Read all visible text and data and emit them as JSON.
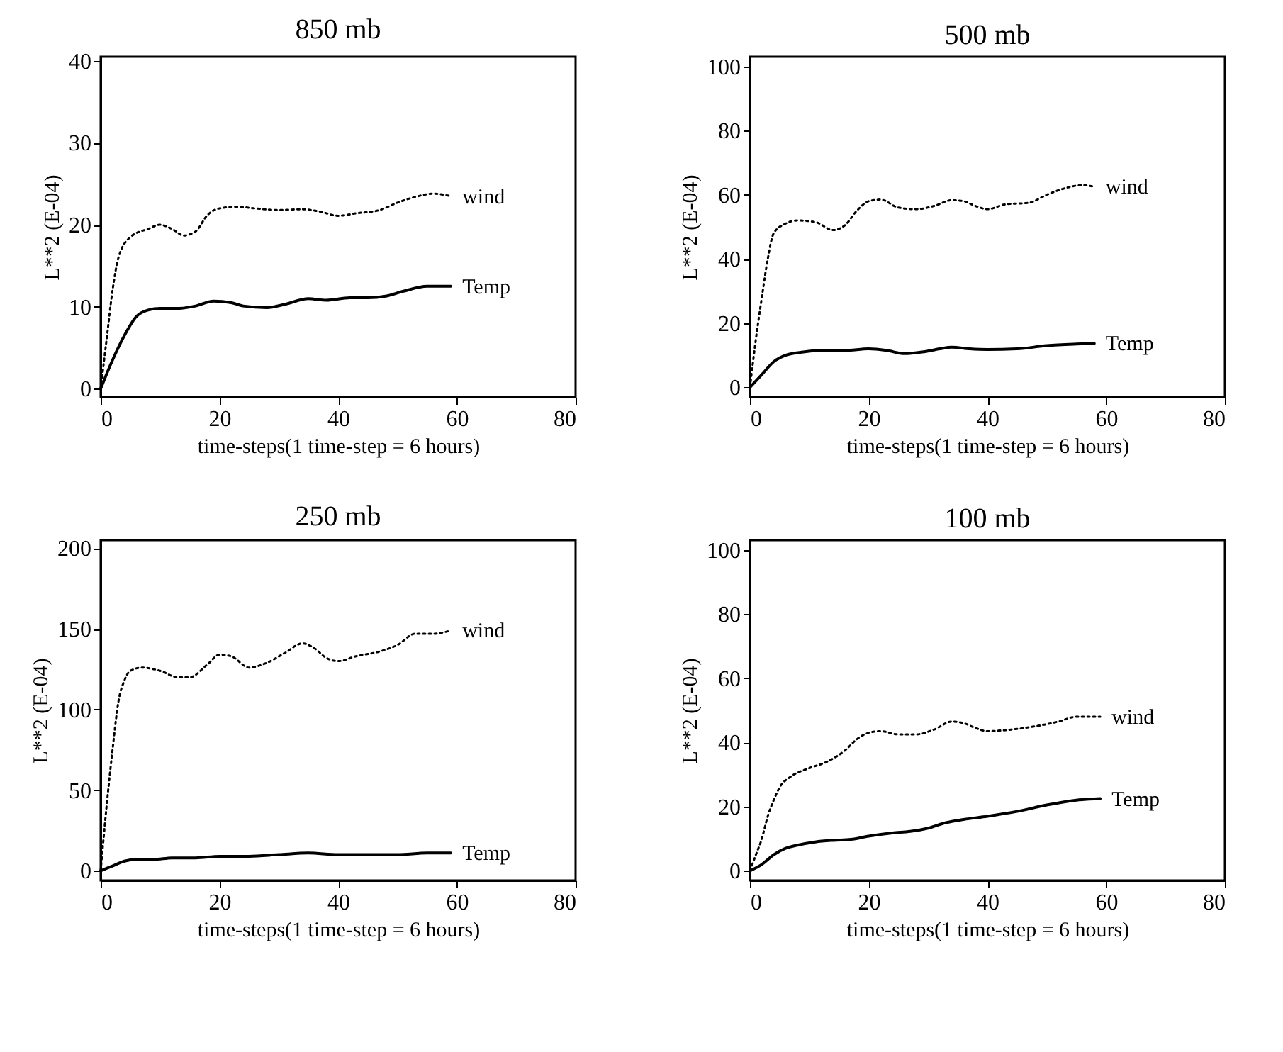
{
  "chart_data": [
    {
      "type": "line",
      "title": "850 mb",
      "xlabel": "time-steps(1 time-step = 6 hours)",
      "ylabel": "L**2 (E-04)",
      "xlim": [
        0,
        80
      ],
      "ylim": [
        -1,
        40.5
      ],
      "xticks": [
        0,
        20,
        40,
        60,
        80
      ],
      "yticks": [
        0,
        10,
        20,
        30,
        40
      ],
      "grid": false,
      "series": [
        {
          "name": "wind",
          "color": "#000000",
          "line_style": "dotted",
          "x": [
            0,
            1,
            2,
            3,
            5,
            8,
            10,
            12,
            14,
            16,
            18,
            20,
            23,
            26,
            30,
            34,
            37,
            40,
            43,
            47,
            50,
            53,
            56,
            59
          ],
          "values": [
            0,
            6,
            12,
            16,
            18.5,
            19.5,
            20,
            19.5,
            18.7,
            19.2,
            21.2,
            22,
            22.2,
            22,
            21.8,
            21.9,
            21.6,
            21.1,
            21.4,
            21.8,
            22.7,
            23.4,
            23.8,
            23.5
          ]
        },
        {
          "name": "Temp",
          "color": "#000000",
          "line_style": "solid",
          "x": [
            0,
            2,
            4,
            6,
            8,
            10,
            13,
            16,
            19,
            22,
            24,
            28,
            31,
            35,
            38,
            42,
            45,
            48,
            51,
            55,
            59
          ],
          "values": [
            0,
            3.5,
            6.5,
            8.8,
            9.6,
            9.8,
            9.8,
            10.1,
            10.7,
            10.5,
            10.1,
            9.9,
            10.3,
            11,
            10.8,
            11.1,
            11.1,
            11.3,
            11.9,
            12.5,
            12.5
          ]
        }
      ]
    },
    {
      "type": "line",
      "title": "500 mb",
      "xlabel": "time-steps(1 time-step = 6 hours)",
      "ylabel": "L**2 (E-04)",
      "xlim": [
        0,
        80
      ],
      "ylim": [
        -3,
        103
      ],
      "xticks": [
        0,
        20,
        40,
        60,
        80
      ],
      "yticks": [
        0,
        20,
        40,
        60,
        80,
        100
      ],
      "grid": false,
      "series": [
        {
          "name": "wind",
          "color": "#000000",
          "line_style": "dotted",
          "x": [
            0,
            1,
            2,
            3,
            4,
            6,
            8,
            11,
            14,
            16,
            18,
            20,
            22,
            25,
            28,
            31,
            34,
            36,
            38,
            40,
            43,
            47,
            50,
            53,
            56,
            58
          ],
          "values": [
            0,
            15,
            28,
            40,
            48,
            51,
            52,
            51.5,
            49,
            50.5,
            55,
            58,
            58.5,
            56,
            55.5,
            56.5,
            58.3,
            58,
            56.5,
            55.5,
            57,
            57.5,
            60,
            62,
            63,
            62.5
          ]
        },
        {
          "name": "Temp",
          "color": "#000000",
          "line_style": "solid",
          "x": [
            0,
            2,
            4,
            6,
            9,
            12,
            16,
            20,
            23,
            26,
            29,
            32,
            34,
            37,
            40,
            45,
            50,
            55,
            58
          ],
          "values": [
            0,
            4,
            8,
            10,
            11,
            11.5,
            11.5,
            12,
            11.5,
            10.5,
            11,
            12,
            12.5,
            12,
            11.8,
            12,
            13,
            13.5,
            13.7
          ]
        }
      ]
    },
    {
      "type": "line",
      "title": "250 mb",
      "xlabel": "time-steps(1 time-step = 6 hours)",
      "ylabel": "L**2 (E-04)",
      "xlim": [
        0,
        80
      ],
      "ylim": [
        -6,
        205
      ],
      "xticks": [
        0,
        20,
        40,
        60,
        80
      ],
      "yticks": [
        0,
        50,
        100,
        150,
        200
      ],
      "grid": false,
      "series": [
        {
          "name": "wind",
          "color": "#000000",
          "line_style": "dotted",
          "x": [
            0,
            1,
            2,
            3,
            4,
            5,
            7,
            10,
            13,
            15,
            18,
            20,
            22,
            25,
            28,
            31,
            34,
            36,
            38,
            40,
            43,
            47,
            50,
            53,
            56,
            59
          ],
          "values": [
            0,
            40,
            75,
            105,
            118,
            124,
            126,
            124,
            120,
            120,
            128,
            134,
            133,
            126,
            129,
            135,
            141,
            138,
            132,
            130,
            133,
            136,
            140,
            147,
            147,
            149
          ]
        },
        {
          "name": "Temp",
          "color": "#000000",
          "line_style": "solid",
          "x": [
            0,
            2,
            4,
            6,
            9,
            12,
            16,
            20,
            25,
            30,
            35,
            40,
            45,
            50,
            55,
            59
          ],
          "values": [
            0,
            3,
            6,
            7,
            7,
            8,
            8,
            9,
            9,
            10,
            11,
            10,
            10,
            10,
            11,
            11
          ]
        }
      ]
    },
    {
      "type": "line",
      "title": "100 mb",
      "xlabel": "time-steps(1 time-step = 6 hours)",
      "ylabel": "L**2 (E-04)",
      "xlim": [
        0,
        80
      ],
      "ylim": [
        -3,
        103
      ],
      "xticks": [
        0,
        20,
        40,
        60,
        80
      ],
      "yticks": [
        0,
        20,
        40,
        60,
        80,
        100
      ],
      "grid": false,
      "series": [
        {
          "name": "wind",
          "color": "#000000",
          "line_style": "dotted",
          "x": [
            0,
            1,
            2,
            3,
            4,
            5,
            7,
            10,
            13,
            16,
            18,
            20,
            22,
            25,
            28,
            31,
            34,
            36,
            38,
            40,
            44,
            48,
            52,
            55,
            59
          ],
          "values": [
            0,
            5,
            10,
            17,
            22,
            26,
            29.5,
            32,
            34,
            37.5,
            41,
            43,
            43.5,
            42.5,
            42.5,
            44,
            46.5,
            46,
            44.5,
            43.5,
            44,
            45,
            46.5,
            48,
            48
          ]
        },
        {
          "name": "Temp",
          "color": "#000000",
          "line_style": "solid",
          "x": [
            0,
            2,
            4,
            6,
            8,
            11,
            14,
            17,
            20,
            24,
            27,
            30,
            33,
            36,
            40,
            45,
            50,
            55,
            59
          ],
          "values": [
            0,
            2,
            5,
            7,
            8,
            9,
            9.5,
            9.8,
            10.8,
            11.8,
            12.3,
            13.3,
            15,
            16,
            17,
            18.5,
            20.5,
            22,
            22.5
          ]
        }
      ]
    }
  ]
}
